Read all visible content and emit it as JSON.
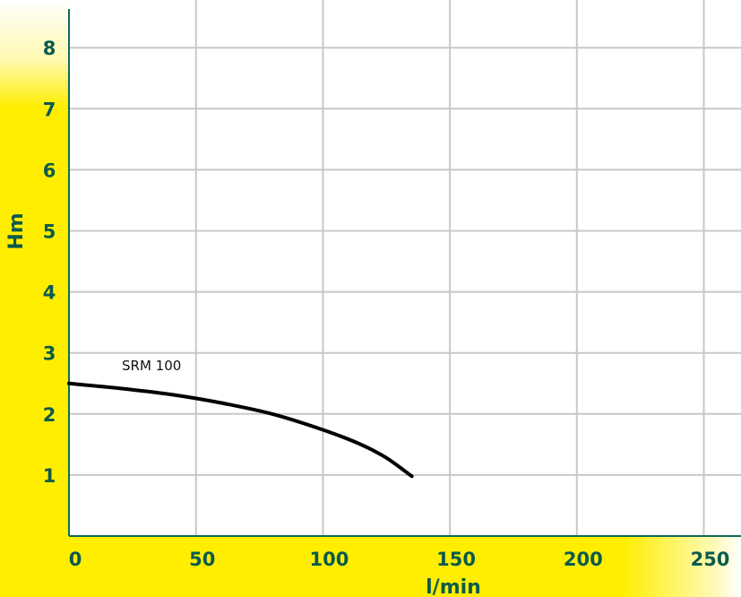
{
  "chart_data": {
    "type": "line",
    "xlabel": "l/min",
    "ylabel": "Hm",
    "xlim": [
      0,
      260
    ],
    "ylim": [
      0,
      8.5
    ],
    "x_ticks": [
      0,
      50,
      100,
      150,
      200,
      250
    ],
    "y_ticks": [
      1,
      2,
      3,
      4,
      5,
      6,
      7,
      8
    ],
    "grid": true,
    "series": [
      {
        "name": "SRM 100",
        "x": [
          0,
          20,
          40,
          60,
          80,
          100,
          115,
          125,
          135
        ],
        "y": [
          2.5,
          2.42,
          2.32,
          2.18,
          2.0,
          1.74,
          1.5,
          1.28,
          0.98
        ]
      }
    ]
  },
  "colors": {
    "band": "#ffee00",
    "band_fade": "#fff9b0",
    "axis": "#0b6b5a",
    "label": "#0b5a4c",
    "grid": "#c8c8c8",
    "curve": "#000000"
  }
}
